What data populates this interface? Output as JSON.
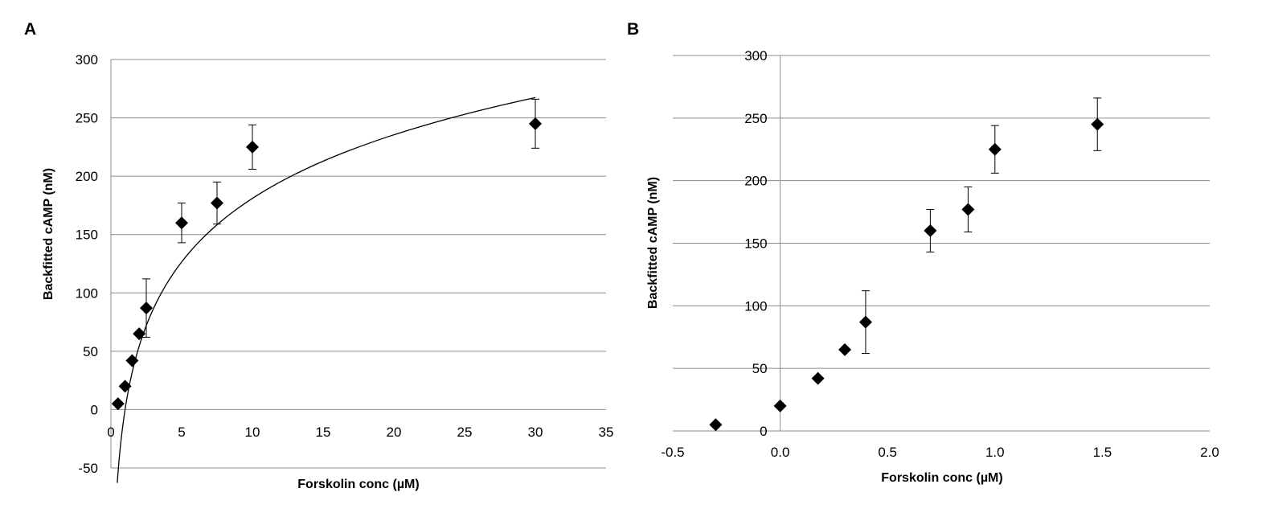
{
  "chart_data": [
    {
      "panel": "A",
      "type": "scatter",
      "title": "",
      "xlabel": "Forskolin conc (µM)",
      "ylabel": "Backfitted cAMP (nM)",
      "xlim": [
        0,
        35
      ],
      "ylim": [
        -50,
        300
      ],
      "xticks": [
        0,
        5,
        10,
        15,
        20,
        25,
        30,
        35
      ],
      "yticks": [
        -50,
        0,
        50,
        100,
        150,
        200,
        250,
        300
      ],
      "xtick_labels": [
        "0",
        "5",
        "10",
        "15",
        "20",
        "25",
        "30",
        "35"
      ],
      "ytick_labels": [
        "-50",
        "0",
        "50",
        "100",
        "150",
        "200",
        "250",
        "300"
      ],
      "grid": "horizontal",
      "marker": "diamond",
      "series": [
        {
          "x": [
            0.5,
            1,
            1.5,
            2,
            2.5,
            5,
            7.5,
            10,
            30
          ],
          "y": [
            5,
            20,
            42,
            65,
            87,
            160,
            177,
            225,
            245
          ],
          "error": [
            0,
            0,
            0,
            0,
            25,
            17,
            18,
            19,
            21
          ]
        }
      ],
      "fit_curve": {
        "type": "logarithmic",
        "x_range": [
          0.45,
          30
        ],
        "a": 78.6,
        "b": 0
      }
    },
    {
      "panel": "B",
      "type": "scatter",
      "title": "",
      "xlabel": "Forskolin conc (µM)",
      "ylabel": "Backfitted cAMP (nM)",
      "xlim": [
        -0.5,
        2.0
      ],
      "ylim": [
        0,
        300
      ],
      "xticks": [
        -0.5,
        0,
        0.5,
        1,
        1.5,
        2
      ],
      "yticks": [
        0,
        50,
        100,
        150,
        200,
        250,
        300
      ],
      "xtick_labels": [
        "-0.5",
        "0.0",
        "0.5",
        "1.0",
        "1.5",
        "2.0"
      ],
      "ytick_labels": [
        "0",
        "50",
        "100",
        "150",
        "200",
        "250",
        "300"
      ],
      "grid": "horizontal",
      "marker": "diamond",
      "series": [
        {
          "x": [
            -0.3,
            0,
            0.176,
            0.301,
            0.398,
            0.699,
            0.875,
            1,
            1.477
          ],
          "y": [
            5,
            20,
            42,
            65,
            87,
            160,
            177,
            225,
            245
          ],
          "error": [
            0,
            0,
            0,
            0,
            25,
            17,
            18,
            19,
            21
          ]
        }
      ]
    }
  ]
}
